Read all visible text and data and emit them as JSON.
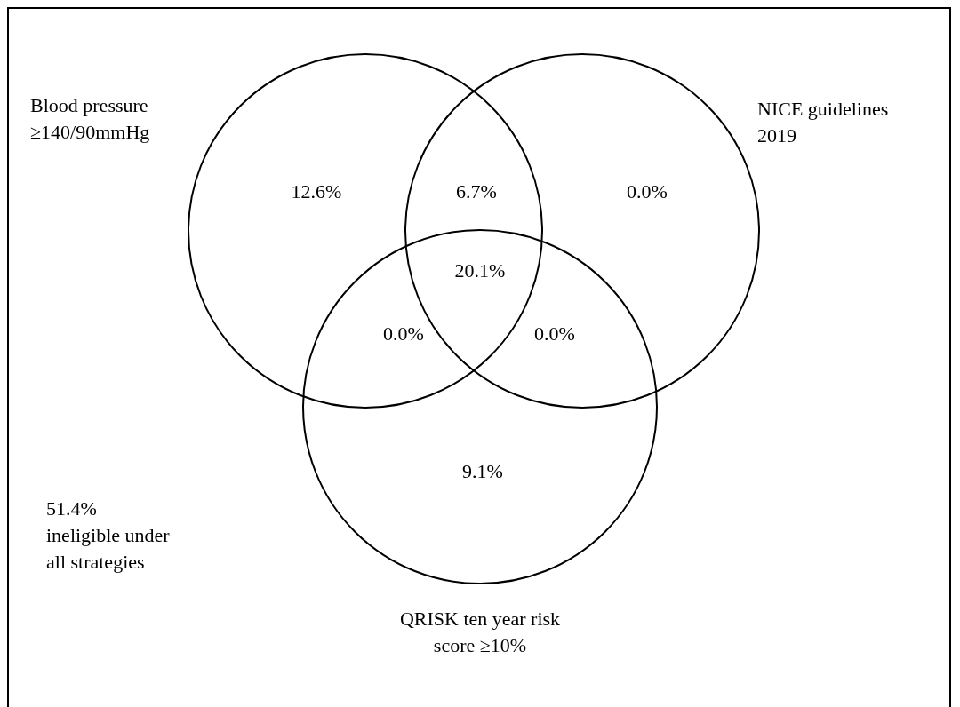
{
  "chart_data": {
    "type": "other",
    "categories": [
      null,
      null,
      null,
      null,
      null,
      null,
      null
    ],
    "values": [
      12.6,
      6.7,
      0.0,
      20.1,
      0.0,
      0.0,
      9.1
    ],
    "value_labels": [
      "12.6%",
      "6.7%",
      "0.0%",
      "20.1%",
      "0.0%",
      "0.0%",
      "9.1%"
    ],
    "annotations": [
      "Blood pressure\n≥140/90mmHg",
      "NICE guidelines\n2019",
      "QRISK ten year risk\nscore ≥10%",
      "51.4%\nineligible under\nall strategies"
    ]
  }
}
